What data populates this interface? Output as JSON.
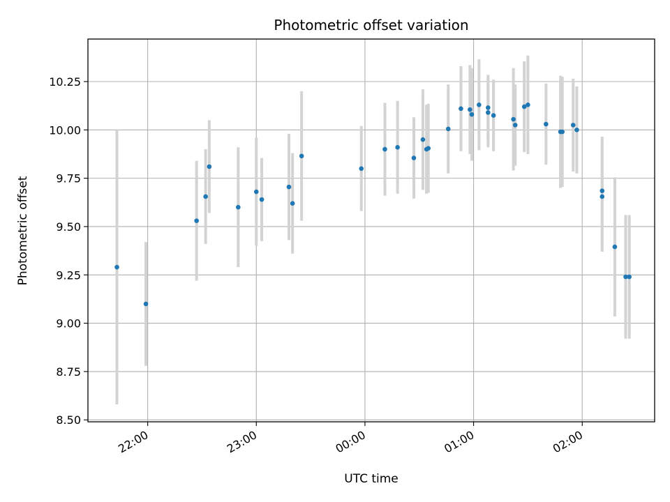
{
  "chart_data": {
    "type": "scatter",
    "title": "Photometric offset variation",
    "xlabel": "UTC time",
    "ylabel": "Photometric offset",
    "x_ticks": [
      "22:00",
      "23:00",
      "00:00",
      "01:00",
      "02:00"
    ],
    "x_tick_times": [
      "22:00",
      "23:00",
      "00:00",
      "01:00",
      "02:00"
    ],
    "y_ticks": [
      "8.50",
      "8.75",
      "9.00",
      "9.25",
      "9.50",
      "9.75",
      "10.00",
      "10.25"
    ],
    "xlim": [
      "21:27",
      "02:40"
    ],
    "ylim": [
      8.49,
      10.47
    ],
    "grid": true,
    "point_color": "#1f77b4",
    "errorbar_color": "#d3d3d3",
    "series": [
      {
        "points": [
          {
            "t": "21:43",
            "y": 9.29,
            "err": 0.71
          },
          {
            "t": "21:59",
            "y": 9.1,
            "err": 0.32
          },
          {
            "t": "22:27",
            "y": 9.53,
            "err": 0.31
          },
          {
            "t": "22:32",
            "y": 9.655,
            "err": 0.245
          },
          {
            "t": "22:34",
            "y": 9.81,
            "err": 0.24
          },
          {
            "t": "22:50",
            "y": 9.6,
            "err": 0.31
          },
          {
            "t": "23:00",
            "y": 9.68,
            "err": 0.28
          },
          {
            "t": "23:03",
            "y": 9.64,
            "err": 0.215
          },
          {
            "t": "23:18",
            "y": 9.705,
            "err": 0.275
          },
          {
            "t": "23:20",
            "y": 9.62,
            "err": 0.26
          },
          {
            "t": "23:25",
            "y": 9.865,
            "err": 0.335
          },
          {
            "t": "23:58",
            "y": 9.8,
            "err": 0.22
          },
          {
            "t": "00:11",
            "y": 9.9,
            "err": 0.24
          },
          {
            "t": "00:18",
            "y": 9.91,
            "err": 0.24
          },
          {
            "t": "00:27",
            "y": 9.855,
            "err": 0.21
          },
          {
            "t": "00:32",
            "y": 9.95,
            "err": 0.26
          },
          {
            "t": "00:34",
            "y": 9.9,
            "err": 0.23
          },
          {
            "t": "00:35",
            "y": 9.905,
            "err": 0.23
          },
          {
            "t": "00:46",
            "y": 10.005,
            "err": 0.23
          },
          {
            "t": "00:53",
            "y": 10.11,
            "err": 0.22
          },
          {
            "t": "00:58",
            "y": 10.105,
            "err": 0.23
          },
          {
            "t": "00:59",
            "y": 10.08,
            "err": 0.24
          },
          {
            "t": "01:03",
            "y": 10.13,
            "err": 0.235
          },
          {
            "t": "01:08",
            "y": 10.115,
            "err": 0.17
          },
          {
            "t": "01:08",
            "y": 10.09,
            "err": 0.18
          },
          {
            "t": "01:11",
            "y": 10.075,
            "err": 0.185
          },
          {
            "t": "01:22",
            "y": 10.055,
            "err": 0.265
          },
          {
            "t": "01:23",
            "y": 10.025,
            "err": 0.21
          },
          {
            "t": "01:28",
            "y": 10.12,
            "err": 0.235
          },
          {
            "t": "01:30",
            "y": 10.13,
            "err": 0.255
          },
          {
            "t": "01:40",
            "y": 10.03,
            "err": 0.21
          },
          {
            "t": "01:48",
            "y": 9.99,
            "err": 0.29
          },
          {
            "t": "01:49",
            "y": 9.99,
            "err": 0.285
          },
          {
            "t": "01:55",
            "y": 10.025,
            "err": 0.24
          },
          {
            "t": "01:57",
            "y": 10.0,
            "err": 0.225
          },
          {
            "t": "02:11",
            "y": 9.655,
            "err": 0.285
          },
          {
            "t": "02:11",
            "y": 9.685,
            "err": 0.28
          },
          {
            "t": "02:18",
            "y": 9.395,
            "err": 0.36
          },
          {
            "t": "02:24",
            "y": 9.24,
            "err": 0.32
          },
          {
            "t": "02:26",
            "y": 9.24,
            "err": 0.32
          }
        ]
      }
    ]
  }
}
